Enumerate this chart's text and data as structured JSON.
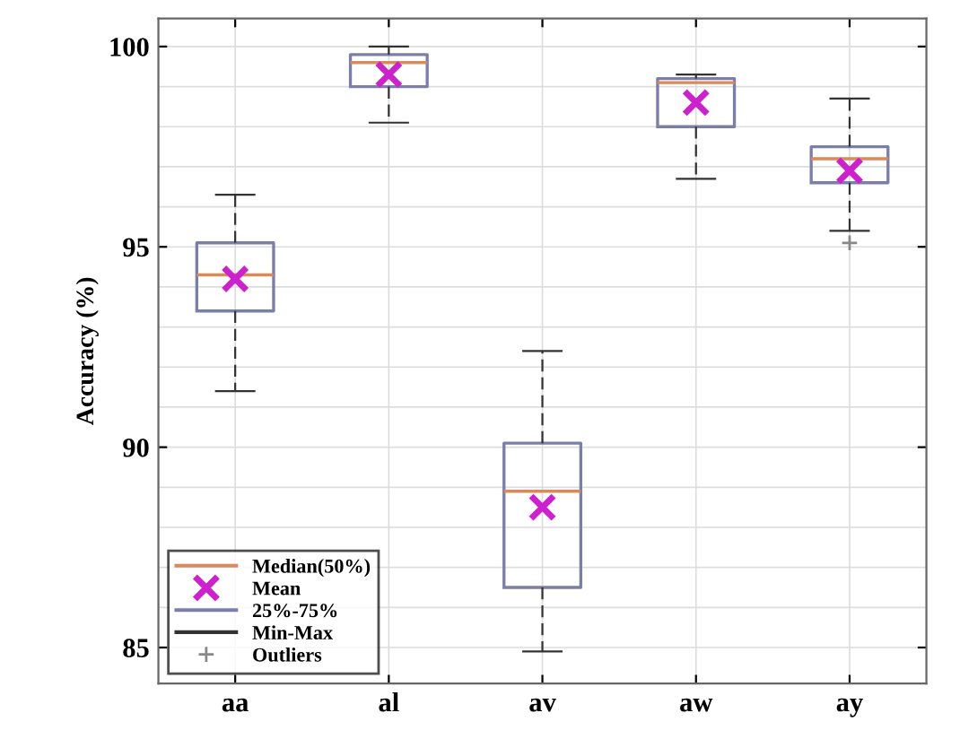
{
  "chart_data": {
    "type": "box",
    "ylabel": "Accuracy (%)",
    "categories": [
      "aa",
      "al",
      "av",
      "aw",
      "ay"
    ],
    "annotations": [
      "Median(50%)",
      "Min-Max"
    ],
    "series": [
      {
        "name": "25%-75%",
        "color": "#7b7fa8",
        "boxes": [
          {
            "low": 91.4,
            "q1": 93.4,
            "median": 94.3,
            "q3": 95.1,
            "high": 96.3
          },
          {
            "low": 98.1,
            "q1": 99.0,
            "median": 99.6,
            "q3": 99.8,
            "high": 100.0
          },
          {
            "low": 84.9,
            "q1": 86.5,
            "median": 88.9,
            "q3": 90.1,
            "high": 92.4
          },
          {
            "low": 96.7,
            "q1": 98.0,
            "median": 99.1,
            "q3": 99.2,
            "high": 99.3
          },
          {
            "low": 95.4,
            "q1": 96.6,
            "median": 97.2,
            "q3": 97.5,
            "high": 98.7
          }
        ]
      },
      {
        "type": "scatter",
        "name": "Mean",
        "color": "#cc22cc",
        "marker": "cross",
        "values": [
          94.2,
          99.3,
          88.5,
          98.6,
          96.9
        ]
      },
      {
        "type": "scatter",
        "name": "Outliers",
        "color": "#888888",
        "marker": "plus",
        "values": [
          null,
          null,
          null,
          null,
          95.1
        ]
      }
    ],
    "ylim": [
      84.1,
      100.7
    ],
    "yticks": [
      85,
      90,
      95,
      100
    ],
    "grid": true,
    "legend": "bottom left"
  }
}
